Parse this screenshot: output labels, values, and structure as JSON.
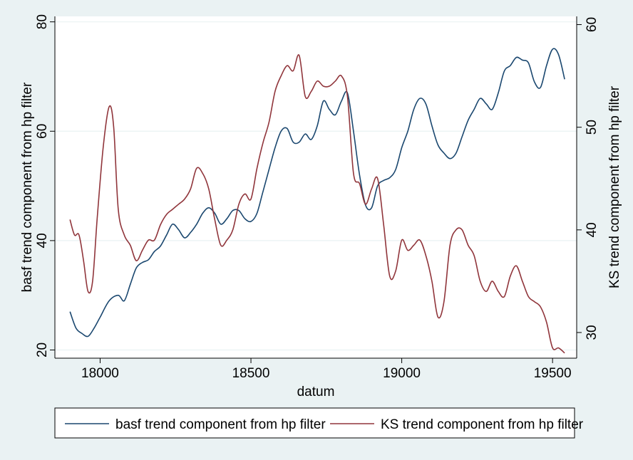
{
  "chart_data": {
    "type": "line",
    "title": "",
    "xlabel": "datum",
    "ylabel_left": "basf trend component from hp filter",
    "ylabel_right": "KS trend component from hp filter",
    "xlim": [
      17850,
      19580
    ],
    "ylim_left": [
      18.5,
      81
    ],
    "ylim_right": [
      27.5,
      60.8
    ],
    "xticks": [
      18000,
      18500,
      19000,
      19500
    ],
    "yticks_left": [
      20,
      40,
      60,
      80
    ],
    "yticks_right": [
      30,
      40,
      50,
      60
    ],
    "grid": true,
    "legend_position": "bottom",
    "series": [
      {
        "name": "basf trend component from hp filter",
        "axis": "left",
        "color": "#1a476f",
        "x": [
          17900,
          17920,
          17940,
          17960,
          17980,
          18000,
          18030,
          18060,
          18080,
          18100,
          18120,
          18140,
          18160,
          18180,
          18200,
          18220,
          18240,
          18260,
          18280,
          18300,
          18320,
          18340,
          18360,
          18380,
          18400,
          18420,
          18440,
          18460,
          18480,
          18500,
          18520,
          18540,
          18560,
          18580,
          18600,
          18620,
          18640,
          18660,
          18680,
          18700,
          18720,
          18740,
          18760,
          18780,
          18800,
          18820,
          18840,
          18860,
          18880,
          18900,
          18920,
          18940,
          18960,
          18980,
          19000,
          19020,
          19040,
          19060,
          19080,
          19100,
          19120,
          19140,
          19160,
          19180,
          19200,
          19220,
          19240,
          19260,
          19280,
          19300,
          19320,
          19340,
          19360,
          19380,
          19400,
          19420,
          19440,
          19460,
          19480,
          19500,
          19520,
          19540
        ],
        "y": [
          27,
          24,
          23,
          22.5,
          24,
          26,
          29,
          30,
          29,
          32,
          35,
          36,
          36.5,
          38,
          39,
          41,
          43,
          42,
          40.5,
          41.5,
          43,
          45,
          46,
          45,
          43,
          44,
          45.5,
          45.5,
          44,
          43.5,
          45,
          49,
          53,
          57,
          60,
          60.5,
          58,
          58,
          59.5,
          58.5,
          61,
          65.5,
          64,
          63,
          65.5,
          67,
          60,
          52,
          46.5,
          46,
          50,
          51,
          51.5,
          53,
          57,
          60,
          64,
          66,
          65,
          61,
          57.5,
          56,
          55,
          56,
          59,
          62,
          64,
          66,
          65,
          64,
          67,
          71,
          72,
          73.5,
          73,
          72.5,
          69,
          68,
          72,
          75,
          74,
          69.5
        ]
      },
      {
        "name": "KS trend component from hp filter",
        "axis": "right",
        "color": "#90353b",
        "x": [
          17900,
          17915,
          17930,
          17945,
          17960,
          17975,
          17990,
          18010,
          18030,
          18045,
          18060,
          18080,
          18100,
          18120,
          18140,
          18160,
          18180,
          18200,
          18220,
          18240,
          18260,
          18280,
          18300,
          18320,
          18340,
          18360,
          18380,
          18400,
          18420,
          18440,
          18460,
          18480,
          18500,
          18520,
          18540,
          18560,
          18580,
          18600,
          18620,
          18640,
          18660,
          18680,
          18700,
          18720,
          18740,
          18760,
          18780,
          18800,
          18820,
          18840,
          18860,
          18880,
          18900,
          18920,
          18940,
          18960,
          18980,
          19000,
          19020,
          19040,
          19060,
          19080,
          19100,
          19120,
          19140,
          19160,
          19180,
          19200,
          19220,
          19240,
          19260,
          19280,
          19300,
          19320,
          19340,
          19360,
          19380,
          19400,
          19420,
          19440,
          19460,
          19480,
          19500,
          19520,
          19540
        ],
        "y": [
          41,
          39.5,
          39.5,
          37,
          34,
          35,
          41,
          48,
          52,
          50,
          42,
          39.5,
          38.5,
          37,
          38,
          39,
          39,
          40.5,
          41.5,
          42,
          42.5,
          43,
          44,
          46,
          45.5,
          44,
          41,
          38.5,
          39,
          40,
          42.5,
          43.5,
          43,
          46,
          48.5,
          50.5,
          53.5,
          55,
          56,
          55.5,
          57,
          53,
          53.5,
          54.5,
          54,
          54,
          54.5,
          55,
          53,
          45.5,
          44.5,
          42.5,
          44,
          45,
          40.5,
          35.5,
          36,
          39,
          38,
          38.5,
          39,
          37.5,
          35,
          31.5,
          33,
          38.5,
          40,
          40,
          38.5,
          37.5,
          35,
          34,
          35,
          34,
          33.5,
          35.5,
          36.5,
          35,
          33.5,
          33,
          32.5,
          31,
          28.5,
          28.5,
          28
        ]
      }
    ]
  }
}
